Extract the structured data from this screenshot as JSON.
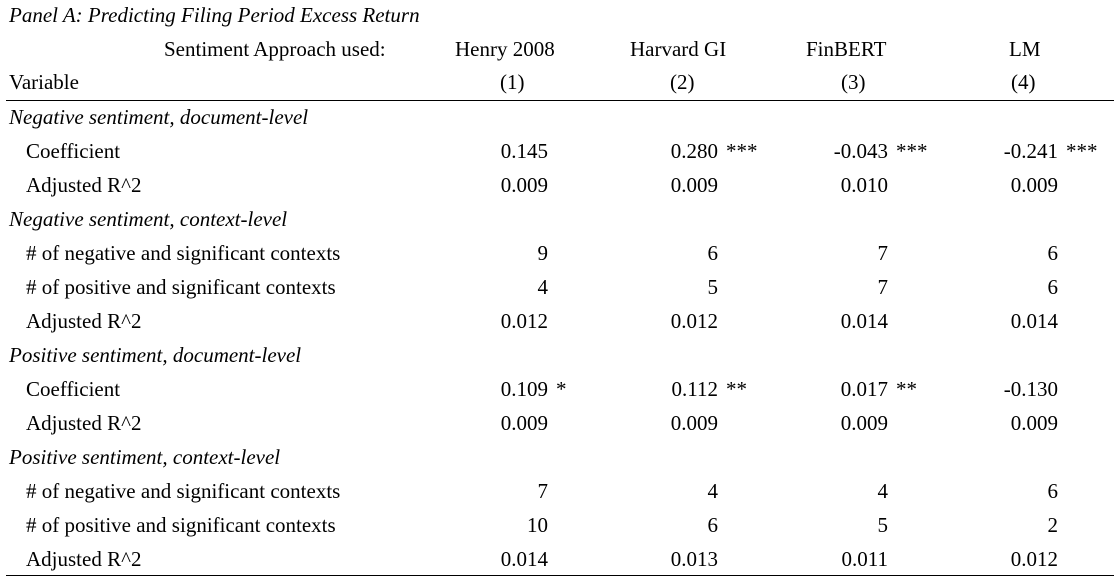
{
  "panel_title": "Panel A: Predicting Filing Period Excess Return",
  "header": {
    "approach_label": "Sentiment Approach used:",
    "variable_label": "Variable",
    "columns": [
      {
        "name": "Henry 2008",
        "number": "(1)"
      },
      {
        "name": "Harvard GI",
        "number": "(2)"
      },
      {
        "name": "FinBERT",
        "number": "(3)"
      },
      {
        "name": "LM",
        "number": "(4)"
      }
    ]
  },
  "rows": [
    {
      "type": "section",
      "label": "Negative sentiment, document-level"
    },
    {
      "type": "data",
      "label": "Coefficient",
      "values": [
        "0.145",
        "0.280",
        "-0.043",
        "-0.241"
      ],
      "stars": [
        "",
        "***",
        "***",
        "***"
      ]
    },
    {
      "type": "data",
      "label": "Adjusted R^2",
      "values": [
        "0.009",
        "0.009",
        "0.010",
        "0.009"
      ],
      "stars": [
        "",
        "",
        "",
        ""
      ]
    },
    {
      "type": "section",
      "label": "Negative sentiment, context-level"
    },
    {
      "type": "data",
      "label": "# of negative and significant contexts",
      "values": [
        "9",
        "6",
        "7",
        "6"
      ],
      "stars": [
        "",
        "",
        "",
        ""
      ]
    },
    {
      "type": "data",
      "label": "# of positive and significant contexts",
      "values": [
        "4",
        "5",
        "7",
        "6"
      ],
      "stars": [
        "",
        "",
        "",
        ""
      ]
    },
    {
      "type": "data",
      "label": "Adjusted R^2",
      "values": [
        "0.012",
        "0.012",
        "0.014",
        "0.014"
      ],
      "stars": [
        "",
        "",
        "",
        ""
      ]
    },
    {
      "type": "section",
      "label": "Positive sentiment, document-level"
    },
    {
      "type": "data",
      "label": "Coefficient",
      "values": [
        "0.109",
        "0.112",
        "0.017",
        "-0.130"
      ],
      "stars": [
        "*",
        "**",
        "**",
        ""
      ]
    },
    {
      "type": "data",
      "label": "Adjusted R^2",
      "values": [
        "0.009",
        "0.009",
        "0.009",
        "0.009"
      ],
      "stars": [
        "",
        "",
        "",
        ""
      ]
    },
    {
      "type": "section",
      "label": "Positive sentiment, context-level"
    },
    {
      "type": "data",
      "label": "# of negative and significant contexts",
      "values": [
        "7",
        "4",
        "4",
        "6"
      ],
      "stars": [
        "",
        "",
        "",
        ""
      ]
    },
    {
      "type": "data",
      "label": "# of positive and significant contexts",
      "values": [
        "10",
        "6",
        "5",
        "2"
      ],
      "stars": [
        "",
        "",
        "",
        ""
      ]
    },
    {
      "type": "data",
      "label": "Adjusted R^2",
      "values": [
        "0.014",
        "0.013",
        "0.011",
        "0.012"
      ],
      "stars": [
        "",
        "",
        "",
        ""
      ]
    }
  ]
}
